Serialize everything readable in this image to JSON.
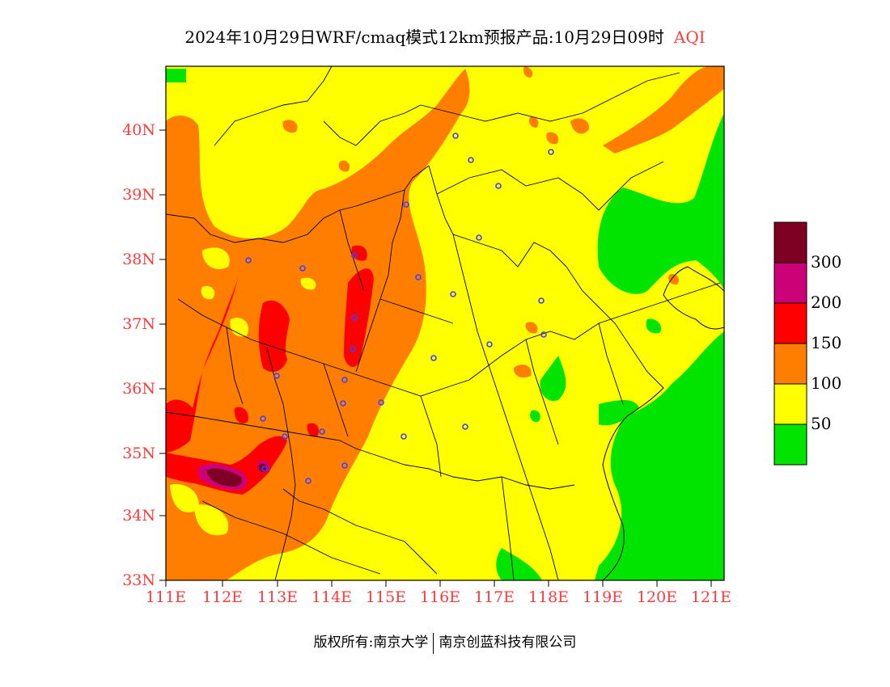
{
  "title": {
    "main": "2024年10月29日WRF/cmaq模式12km预报产品:10月29日09时",
    "variable": "AQI"
  },
  "map": {
    "projection": "lon-lat",
    "lon_range": [
      111,
      121.5
    ],
    "lat_range": [
      33,
      41
    ],
    "y_ticks": [
      "40N",
      "39N",
      "38N",
      "37N",
      "36N",
      "35N",
      "34N",
      "33N"
    ],
    "x_ticks": [
      "111E",
      "112E",
      "113E",
      "114E",
      "115E",
      "116E",
      "117E",
      "118E",
      "119E",
      "120E",
      "121E"
    ],
    "tick_color": "#ff3b3b"
  },
  "legend": {
    "colors": [
      "#00e400",
      "#ffff00",
      "#ff7e00",
      "#ff0000",
      "#cc0077",
      "#7e0023"
    ],
    "labels": [
      "50",
      "100",
      "150",
      "200",
      "300"
    ]
  },
  "footer": {
    "left": "版权所有:南京大学",
    "right": "南京创蓝科技有限公司"
  }
}
